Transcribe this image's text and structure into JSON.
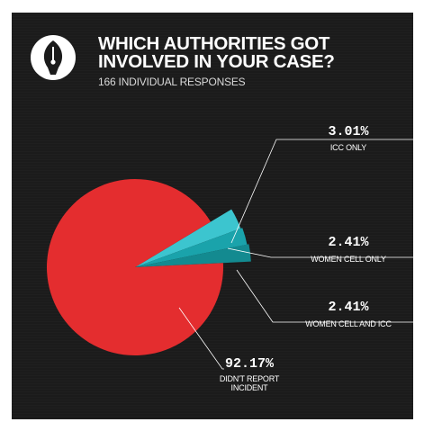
{
  "header": {
    "title_line1": "WHICH AUTHORITIES GOT",
    "title_line2": "INVOLVED IN YOUR CASE?",
    "subtitle": "166 INDIVIDUAL RESPONSES"
  },
  "colors": {
    "background": "#1b1b1b",
    "red": "#e42d2f",
    "teal_light": "#3cc5cf",
    "teal_mid": "#1aa3ab",
    "teal_dark": "#138a90",
    "leader": "#ffffff"
  },
  "chart_data": {
    "type": "pie",
    "title": "WHICH AUTHORITIES GOT INVOLVED IN YOUR CASE?",
    "subtitle": "166 INDIVIDUAL RESPONSES",
    "slices": [
      {
        "label": "ICC ONLY",
        "value": 3.01,
        "display": "3.01%",
        "color": "#3cc5cf"
      },
      {
        "label": "WOMEN CELL ONLY",
        "value": 2.41,
        "display": "2.41%",
        "color": "#1aa3ab"
      },
      {
        "label": "WOMEN CELL AND ICC",
        "value": 2.41,
        "display": "2.41%",
        "color": "#138a90"
      },
      {
        "label": "DIDN'T REPORT INCIDENT",
        "label_lines": [
          "DIDN'T REPORT",
          "INCIDENT"
        ],
        "value": 92.17,
        "display": "92.17%",
        "color": "#e42d2f"
      }
    ]
  }
}
